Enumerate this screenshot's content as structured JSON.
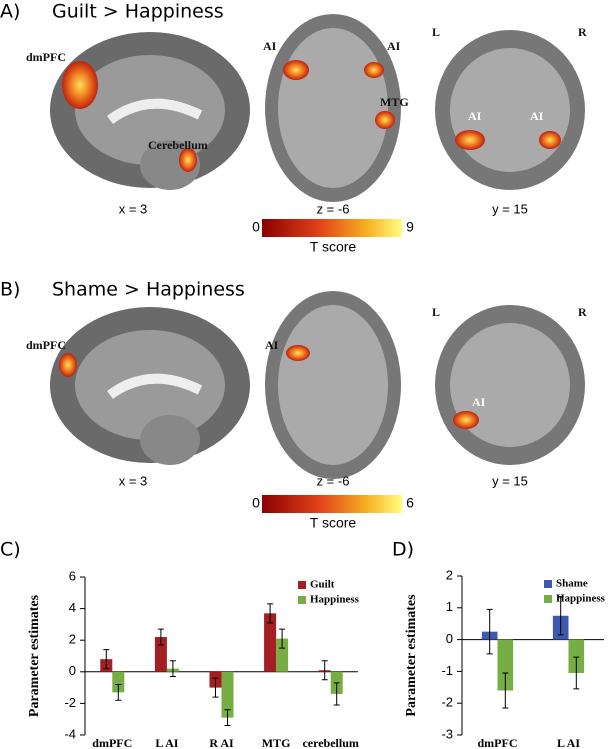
{
  "panels": [
    {
      "letter": "A)",
      "title": "Guilt > Happiness",
      "labels": [
        "dmPFC",
        "Cerebellum",
        "AI",
        "AI",
        "MTG",
        "L",
        "R",
        "AI",
        "AI"
      ],
      "coords": [
        "x = 3",
        "z = -6",
        "y = 15"
      ],
      "colorbar": {
        "min": 0,
        "max": 9,
        "label": "T score"
      }
    },
    {
      "letter": "B)",
      "title": "Shame > Happiness",
      "labels": [
        "dmPFC",
        "AI",
        "L",
        "R",
        "AI"
      ],
      "coords": [
        "x = 3",
        "z = -6",
        "y = 15"
      ],
      "colorbar": {
        "min": 0,
        "max": 6,
        "label": "T score"
      }
    }
  ],
  "chart_data": [
    {
      "type": "bar",
      "letter": "C)",
      "ylabel": "Parameter estimates",
      "categories": [
        "dmPFC",
        "L AI",
        "R AI",
        "MTG",
        "cerebellum"
      ],
      "series": [
        {
          "name": "Guilt",
          "color": "#a31f24",
          "values": [
            0.8,
            2.2,
            -1.0,
            3.7,
            0.1
          ],
          "errors": [
            0.6,
            0.5,
            0.6,
            0.6,
            0.6
          ]
        },
        {
          "name": "Happiness",
          "color": "#77ad45",
          "values": [
            -1.3,
            0.2,
            -2.9,
            2.1,
            -1.4
          ],
          "errors": [
            0.5,
            0.5,
            0.5,
            0.6,
            0.7
          ]
        }
      ],
      "ylim": [
        -4,
        6
      ],
      "yticks": [
        -4,
        -2,
        0,
        2,
        4,
        6
      ],
      "legend": "upper right"
    },
    {
      "type": "bar",
      "letter": "D)",
      "ylabel": "Parameter estimates",
      "categories": [
        "dmPFC",
        "L AI"
      ],
      "series": [
        {
          "name": "Shame",
          "color": "#3d5aad",
          "values": [
            0.25,
            0.75
          ],
          "errors": [
            0.7,
            0.6
          ]
        },
        {
          "name": "Happiness",
          "color": "#77ad45",
          "values": [
            -1.6,
            -1.05
          ],
          "errors": [
            0.55,
            0.5
          ]
        }
      ],
      "ylim": [
        -3,
        2
      ],
      "yticks": [
        -3,
        -2,
        -1,
        0,
        1,
        2
      ],
      "legend": "upper right"
    }
  ]
}
